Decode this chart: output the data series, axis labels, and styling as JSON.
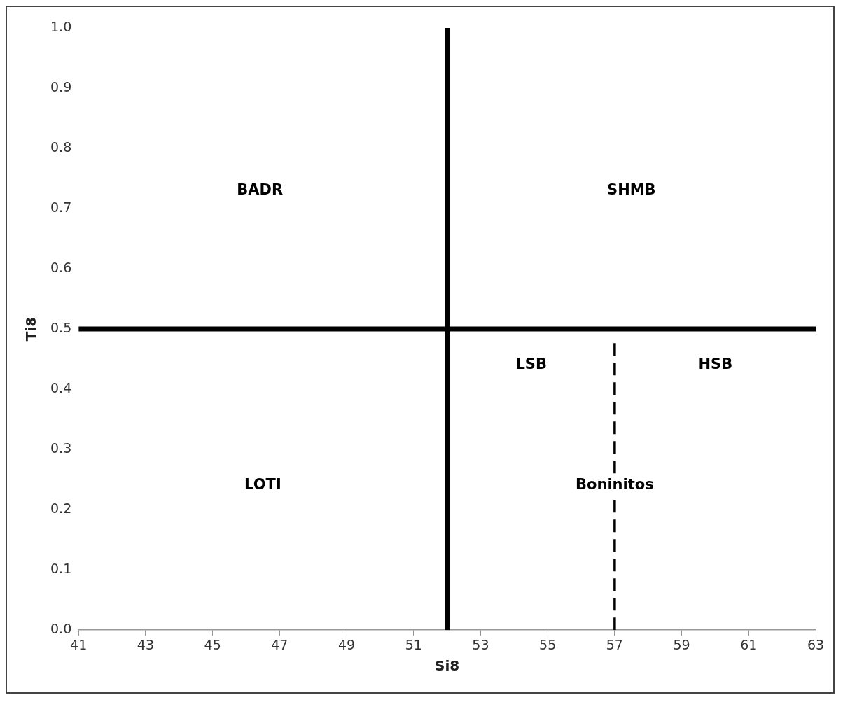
{
  "chart_data": {
    "type": "line",
    "xlabel": "Si8",
    "ylabel": "Ti8",
    "xlim": [
      41,
      63
    ],
    "xticks": [
      41,
      43,
      45,
      47,
      49,
      51,
      53,
      55,
      57,
      59,
      61,
      63
    ],
    "ylim": [
      0,
      1
    ],
    "yticks": [
      {
        "value": 0,
        "label": "0.0"
      },
      0.1,
      0.2,
      0.3,
      0.4,
      0.5,
      0.6,
      0.7,
      0.8,
      0.9,
      {
        "value": 1,
        "label": "1.0"
      }
    ],
    "grid": false,
    "legend": false,
    "marker": "none",
    "series": [
      {
        "color": "#000000",
        "x": [
          52,
          52
        ],
        "values": [
          0,
          1
        ],
        "line_style": "solid"
      },
      {
        "color": "#000000",
        "x": [
          41,
          63
        ],
        "values": [
          0.5,
          0.5
        ],
        "line_style": "solid"
      },
      {
        "color": "#000000",
        "x": [
          57,
          57
        ],
        "values": [
          0,
          0.48
        ],
        "line_style": "dashed"
      }
    ],
    "annotations": [
      "BADR",
      "SHMB",
      "LSB",
      "HSB",
      "LOTI",
      {
        "text": "Boninitos",
        "x": 57,
        "y": 0.24
      }
    ]
  }
}
